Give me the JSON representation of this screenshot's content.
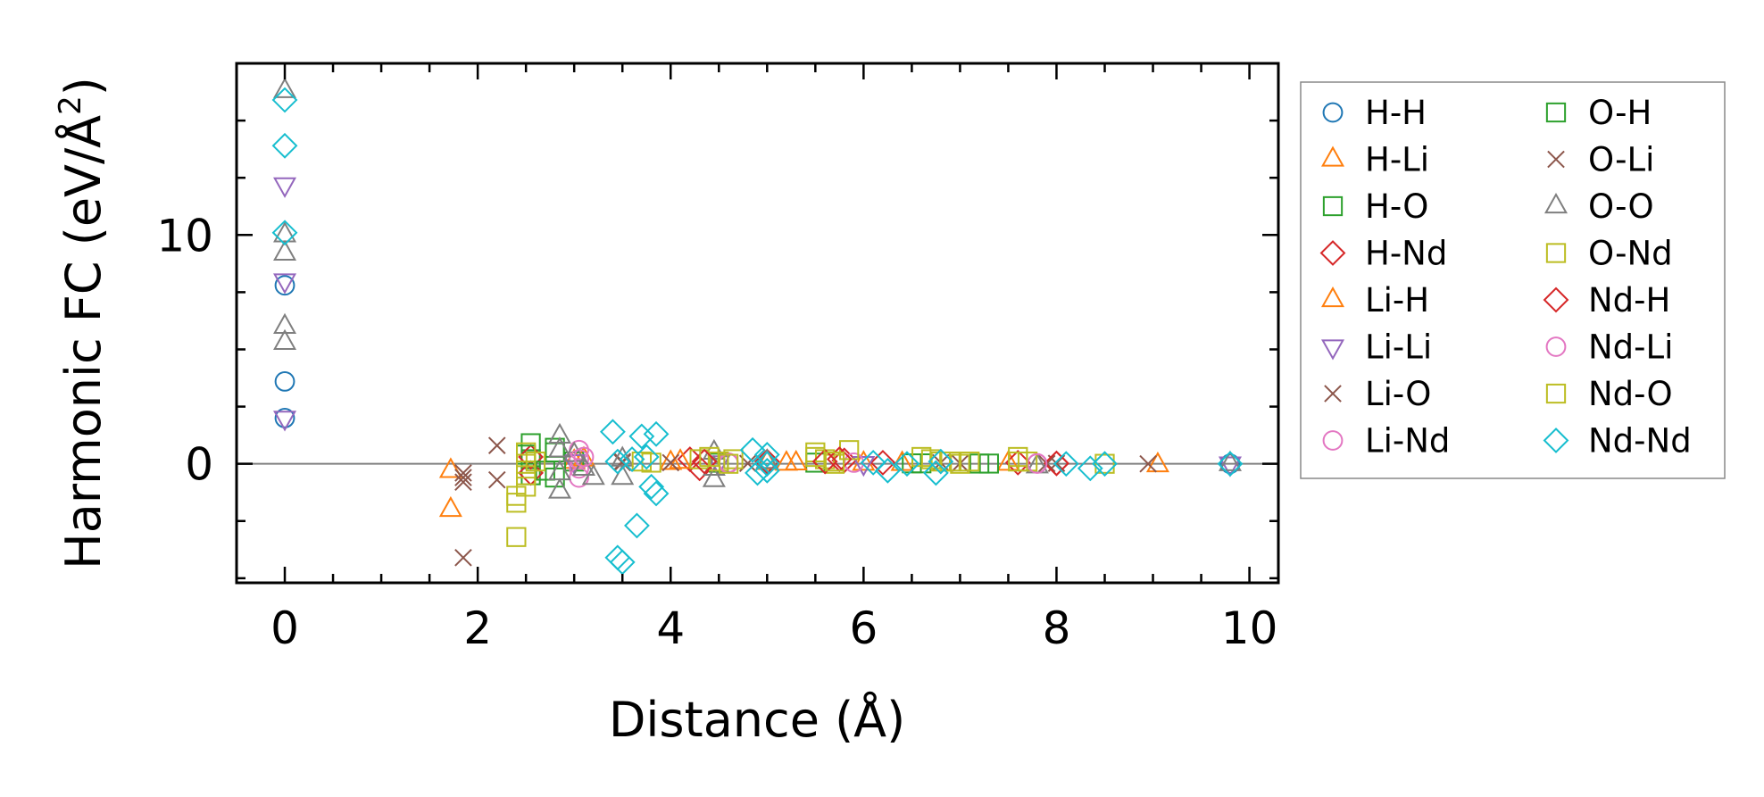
{
  "chart_data": {
    "type": "scatter",
    "title": "",
    "xlabel": "Distance (Å)",
    "ylabel_main": "Harmonic FC (eV/Å",
    "ylabel_sup": "2",
    "ylabel_end": ")",
    "xlim": [
      -0.5,
      10.3
    ],
    "ylim": [
      -5.2,
      17.5
    ],
    "xticks": [
      0,
      2,
      4,
      6,
      8,
      10
    ],
    "xtick_labels": [
      "0",
      "2",
      "4",
      "6",
      "8",
      "10"
    ],
    "yticks": [
      0,
      10
    ],
    "ytick_labels": [
      "0",
      "10"
    ],
    "reference_line_y": 0,
    "legend": {
      "position": "outside-right",
      "columns": 2
    },
    "series": [
      {
        "name": "H-H",
        "marker": "circle",
        "color": "#1f77b4",
        "points": [
          [
            0,
            7.8
          ],
          [
            0,
            3.6
          ],
          [
            0,
            2.0
          ],
          [
            9.8,
            0
          ]
        ]
      },
      {
        "name": "H-Li",
        "marker": "triangle-up",
        "color": "#ff7f0e",
        "points": [
          [
            1.72,
            -0.3
          ],
          [
            1.72,
            -2.0
          ],
          [
            3.0,
            0.1
          ],
          [
            4.0,
            0.05
          ],
          [
            5.0,
            0.05
          ],
          [
            5.2,
            0.02
          ],
          [
            6.0,
            0.02
          ],
          [
            7.5,
            0.02
          ],
          [
            9.05,
            -0.05
          ]
        ]
      },
      {
        "name": "H-O",
        "marker": "square",
        "color": "#2ca02c",
        "points": [
          [
            2.55,
            0.9
          ],
          [
            2.55,
            0.2
          ],
          [
            2.55,
            -0.5
          ],
          [
            2.8,
            0.5
          ],
          [
            2.8,
            -0.6
          ],
          [
            3.0,
            0.1
          ],
          [
            4.5,
            0.05
          ],
          [
            5.5,
            0.05
          ],
          [
            6.5,
            0.02
          ],
          [
            7.2,
            0.01
          ]
        ]
      },
      {
        "name": "H-Nd",
        "marker": "diamond",
        "color": "#d62728",
        "points": [
          [
            2.55,
            0.3
          ],
          [
            2.55,
            -0.4
          ],
          [
            4.2,
            0.2
          ],
          [
            4.3,
            -0.2
          ],
          [
            5.0,
            0.1
          ],
          [
            5.8,
            0.15
          ],
          [
            6.2,
            0.05
          ],
          [
            7.6,
            0.05
          ],
          [
            8.0,
            0.02
          ]
        ]
      },
      {
        "name": "Li-H",
        "marker": "triangle-up",
        "color": "#ff7f0e",
        "points": [
          [
            3.1,
            0.2
          ],
          [
            4.1,
            0.1
          ],
          [
            5.3,
            0.03
          ],
          [
            6.4,
            0.01
          ]
        ]
      },
      {
        "name": "Li-Li",
        "marker": "triangle-down",
        "color": "#9467bd",
        "points": [
          [
            0,
            12.2
          ],
          [
            0,
            8.0
          ],
          [
            0,
            2.0
          ],
          [
            3.0,
            0.1
          ],
          [
            4.5,
            0.05
          ],
          [
            6.0,
            0.02
          ],
          [
            9.8,
            0
          ]
        ]
      },
      {
        "name": "Li-O",
        "marker": "x",
        "color": "#8c564b",
        "points": [
          [
            1.85,
            -0.4
          ],
          [
            1.85,
            -0.8
          ],
          [
            1.85,
            -4.1
          ],
          [
            2.2,
            0.8
          ],
          [
            2.2,
            -0.7
          ],
          [
            3.5,
            0.1
          ],
          [
            4.0,
            0.05
          ],
          [
            4.8,
            0.02
          ],
          [
            6.8,
            0.05
          ],
          [
            7.0,
            0.02
          ],
          [
            8.0,
            0.02
          ],
          [
            8.95,
            0
          ]
        ]
      },
      {
        "name": "Li-Nd",
        "marker": "circle",
        "color": "#e377c2",
        "points": [
          [
            3.05,
            0.6
          ],
          [
            3.05,
            0.2
          ],
          [
            3.05,
            -0.2
          ],
          [
            3.05,
            -0.6
          ],
          [
            4.6,
            0.05
          ],
          [
            5.9,
            0.05
          ],
          [
            7.8,
            0.02
          ]
        ]
      },
      {
        "name": "O-H",
        "marker": "square",
        "color": "#2ca02c",
        "points": [
          [
            2.5,
            0.4
          ],
          [
            2.7,
            -0.3
          ],
          [
            2.8,
            0.7
          ],
          [
            4.5,
            0.05
          ],
          [
            6.6,
            0.02
          ],
          [
            7.3,
            0.01
          ]
        ]
      },
      {
        "name": "O-Li",
        "marker": "x",
        "color": "#8c564b",
        "points": [
          [
            1.85,
            -0.6
          ],
          [
            3.5,
            0.05
          ],
          [
            7.9,
            0.01
          ]
        ]
      },
      {
        "name": "O-O",
        "marker": "triangle-up",
        "color": "#7f7f7f",
        "points": [
          [
            0,
            16.3
          ],
          [
            0,
            10.0
          ],
          [
            0,
            9.2
          ],
          [
            0,
            6.0
          ],
          [
            0,
            5.3
          ],
          [
            2.85,
            1.2
          ],
          [
            2.85,
            0.6
          ],
          [
            2.85,
            -0.4
          ],
          [
            2.85,
            -1.2
          ],
          [
            3.0,
            0.4
          ],
          [
            3.1,
            -0.2
          ],
          [
            3.2,
            -0.6
          ],
          [
            3.5,
            0.2
          ],
          [
            3.5,
            -0.6
          ],
          [
            4.45,
            0.5
          ],
          [
            4.45,
            -0.2
          ],
          [
            4.45,
            -0.7
          ],
          [
            5.0,
            0.1
          ],
          [
            7.8,
            -0.1
          ],
          [
            9.8,
            0
          ]
        ]
      },
      {
        "name": "O-Nd",
        "marker": "square",
        "color": "#bcbd22",
        "points": [
          [
            2.4,
            -1.7
          ],
          [
            2.4,
            -1.4
          ],
          [
            2.4,
            -3.2
          ],
          [
            2.5,
            0.5
          ],
          [
            2.5,
            0.0
          ],
          [
            2.5,
            -0.5
          ],
          [
            2.5,
            -1.0
          ],
          [
            3.7,
            0.1
          ],
          [
            4.3,
            0.2
          ],
          [
            4.5,
            0.1
          ],
          [
            4.65,
            0.2
          ],
          [
            5.5,
            0.5
          ],
          [
            5.6,
            0.2
          ],
          [
            5.7,
            0.0
          ],
          [
            5.85,
            0.6
          ],
          [
            6.7,
            0.2
          ],
          [
            6.9,
            0.1
          ],
          [
            7.1,
            0.1
          ],
          [
            7.6,
            0.3
          ],
          [
            7.7,
            0.1
          ]
        ]
      },
      {
        "name": "Nd-H",
        "marker": "diamond",
        "color": "#d62728",
        "points": [
          [
            4.35,
            0.1
          ],
          [
            5.6,
            0.1
          ],
          [
            5.75,
            0.2
          ],
          [
            8.0,
            0.02
          ]
        ]
      },
      {
        "name": "Nd-Li",
        "marker": "circle",
        "color": "#e377c2",
        "points": [
          [
            3.1,
            0.3
          ],
          [
            4.6,
            0.02
          ],
          [
            7.8,
            0.01
          ]
        ]
      },
      {
        "name": "Nd-O",
        "marker": "square",
        "color": "#bcbd22",
        "points": [
          [
            2.6,
            0.1
          ],
          [
            3.8,
            0.05
          ],
          [
            4.4,
            0.3
          ],
          [
            4.6,
            0.0
          ],
          [
            5.5,
            0.3
          ],
          [
            5.7,
            0.1
          ],
          [
            6.6,
            0.3
          ],
          [
            6.8,
            0.1
          ],
          [
            7.0,
            0.0
          ],
          [
            7.6,
            0.1
          ],
          [
            8.5,
            0.0
          ]
        ]
      },
      {
        "name": "Nd-Nd",
        "marker": "diamond",
        "color": "#17becf",
        "points": [
          [
            0,
            15.9
          ],
          [
            0,
            13.9
          ],
          [
            0,
            10.1
          ],
          [
            3.4,
            1.4
          ],
          [
            3.45,
            0.1
          ],
          [
            3.45,
            -4.1
          ],
          [
            3.5,
            -4.3
          ],
          [
            3.65,
            -2.7
          ],
          [
            3.6,
            0.2
          ],
          [
            3.7,
            1.2
          ],
          [
            3.75,
            0.3
          ],
          [
            3.8,
            -1.0
          ],
          [
            3.85,
            1.3
          ],
          [
            3.85,
            -1.3
          ],
          [
            4.85,
            0.6
          ],
          [
            4.9,
            -0.4
          ],
          [
            5.0,
            0.4
          ],
          [
            5.0,
            -0.3
          ],
          [
            5.0,
            0.0
          ],
          [
            6.1,
            0.05
          ],
          [
            6.25,
            -0.3
          ],
          [
            6.45,
            0.0
          ],
          [
            6.75,
            -0.4
          ],
          [
            6.8,
            0.1
          ],
          [
            8.1,
            0.0
          ],
          [
            8.35,
            -0.2
          ],
          [
            8.5,
            0.0
          ],
          [
            9.8,
            0.0
          ]
        ]
      }
    ]
  }
}
